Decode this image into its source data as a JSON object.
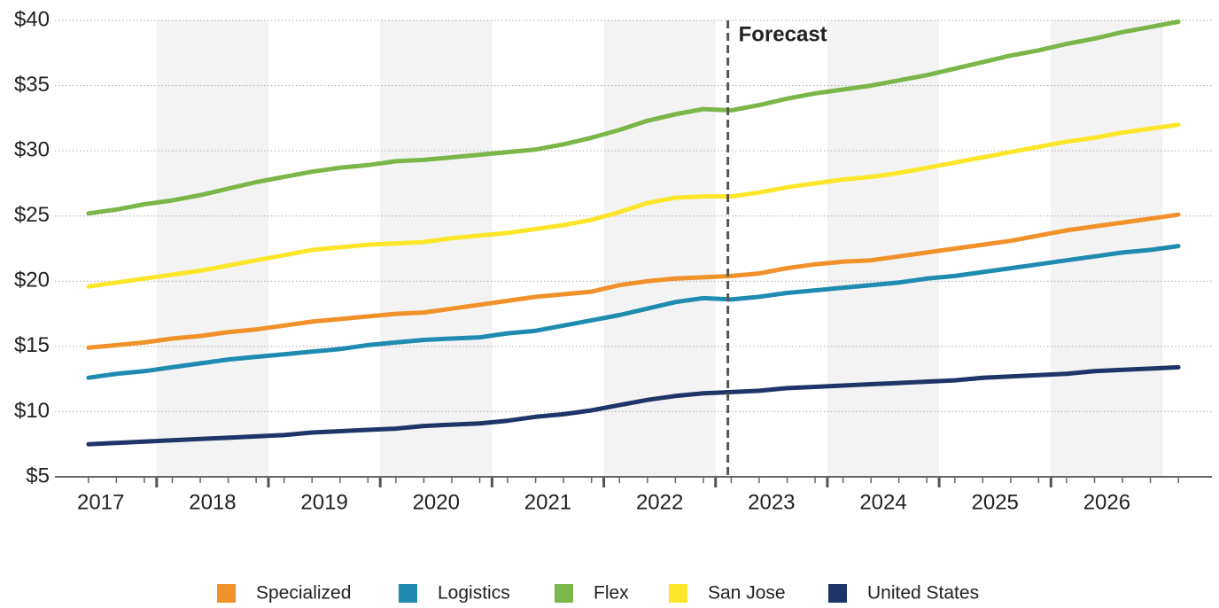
{
  "chart_data": {
    "type": "line",
    "x": [
      2017,
      2017.25,
      2017.5,
      2017.75,
      2018,
      2018.25,
      2018.5,
      2018.75,
      2019,
      2019.25,
      2019.5,
      2019.75,
      2020,
      2020.25,
      2020.5,
      2020.75,
      2021,
      2021.25,
      2021.5,
      2021.75,
      2022,
      2022.25,
      2022.5,
      2022.75,
      2023,
      2023.25,
      2023.5,
      2023.75,
      2024,
      2024.25,
      2024.5,
      2024.75,
      2025,
      2025.25,
      2025.5,
      2025.75,
      2026,
      2026.25,
      2026.5,
      2026.75
    ],
    "xlim": [
      2016.7,
      2027.05
    ],
    "xticks": [
      {
        "value": 2017.11,
        "label": "2017"
      },
      {
        "value": 2018.11,
        "label": "2018"
      },
      {
        "value": 2019.11,
        "label": "2019"
      },
      {
        "value": 2020.11,
        "label": "2020"
      },
      {
        "value": 2021.11,
        "label": "2021"
      },
      {
        "value": 2022.11,
        "label": "2022"
      },
      {
        "value": 2023.11,
        "label": "2023"
      },
      {
        "value": 2024.11,
        "label": "2024"
      },
      {
        "value": 2025.11,
        "label": "2025"
      },
      {
        "value": 2026.11,
        "label": "2026"
      }
    ],
    "ylim": [
      5,
      40
    ],
    "yticks": [
      {
        "value": 5,
        "label": "$5"
      },
      {
        "value": 10,
        "label": "$10"
      },
      {
        "value": 15,
        "label": "$15"
      },
      {
        "value": 20,
        "label": "$20"
      },
      {
        "value": 25,
        "label": "$25"
      },
      {
        "value": 30,
        "label": "$30"
      },
      {
        "value": 35,
        "label": "$35"
      },
      {
        "value": 40,
        "label": "$40"
      }
    ],
    "grid": true,
    "annotation": {
      "text": "Forecast",
      "x": 2022.72
    },
    "series": [
      {
        "name": "Specialized",
        "color": "#f0912a",
        "values": [
          14.9,
          15.1,
          15.3,
          15.6,
          15.8,
          16.1,
          16.3,
          16.6,
          16.9,
          17.1,
          17.3,
          17.5,
          17.6,
          17.9,
          18.2,
          18.5,
          18.8,
          19.0,
          19.2,
          19.7,
          20.0,
          20.2,
          20.3,
          20.4,
          20.6,
          21.0,
          21.3,
          21.5,
          21.6,
          21.9,
          22.2,
          22.5,
          22.8,
          23.1,
          23.5,
          23.9,
          24.2,
          24.5,
          24.8,
          25.1
        ]
      },
      {
        "name": "Logistics",
        "color": "#1f8bb0",
        "values": [
          12.6,
          12.9,
          13.1,
          13.4,
          13.7,
          14.0,
          14.2,
          14.4,
          14.6,
          14.8,
          15.1,
          15.3,
          15.5,
          15.6,
          15.7,
          16.0,
          16.2,
          16.6,
          17.0,
          17.4,
          17.9,
          18.4,
          18.7,
          18.6,
          18.8,
          19.1,
          19.3,
          19.5,
          19.7,
          19.9,
          20.2,
          20.4,
          20.7,
          21.0,
          21.3,
          21.6,
          21.9,
          22.2,
          22.4,
          22.7
        ]
      },
      {
        "name": "Flex",
        "color": "#7ab648",
        "values": [
          25.2,
          25.5,
          25.9,
          26.2,
          26.6,
          27.1,
          27.6,
          28.0,
          28.4,
          28.7,
          28.9,
          29.2,
          29.3,
          29.5,
          29.7,
          29.9,
          30.1,
          30.5,
          31.0,
          31.6,
          32.3,
          32.8,
          33.2,
          33.1,
          33.5,
          34.0,
          34.4,
          34.7,
          35.0,
          35.4,
          35.8,
          36.3,
          36.8,
          37.3,
          37.7,
          38.2,
          38.6,
          39.1,
          39.5,
          39.9
        ]
      },
      {
        "name": "San Jose",
        "color": "#fde52a",
        "values": [
          19.6,
          19.9,
          20.2,
          20.5,
          20.8,
          21.2,
          21.6,
          22.0,
          22.4,
          22.6,
          22.8,
          22.9,
          23.0,
          23.3,
          23.5,
          23.7,
          24.0,
          24.3,
          24.7,
          25.3,
          26.0,
          26.4,
          26.5,
          26.5,
          26.8,
          27.2,
          27.5,
          27.8,
          28.0,
          28.3,
          28.7,
          29.1,
          29.5,
          29.9,
          30.3,
          30.7,
          31.0,
          31.4,
          31.7,
          32.0
        ]
      },
      {
        "name": "United States",
        "color": "#1f3468",
        "values": [
          7.5,
          7.6,
          7.7,
          7.8,
          7.9,
          8.0,
          8.1,
          8.2,
          8.4,
          8.5,
          8.6,
          8.7,
          8.9,
          9.0,
          9.1,
          9.3,
          9.6,
          9.8,
          10.1,
          10.5,
          10.9,
          11.2,
          11.4,
          11.5,
          11.6,
          11.8,
          11.9,
          12.0,
          12.1,
          12.2,
          12.3,
          12.4,
          12.6,
          12.7,
          12.8,
          12.9,
          13.1,
          13.2,
          13.3,
          13.4
        ]
      }
    ]
  }
}
